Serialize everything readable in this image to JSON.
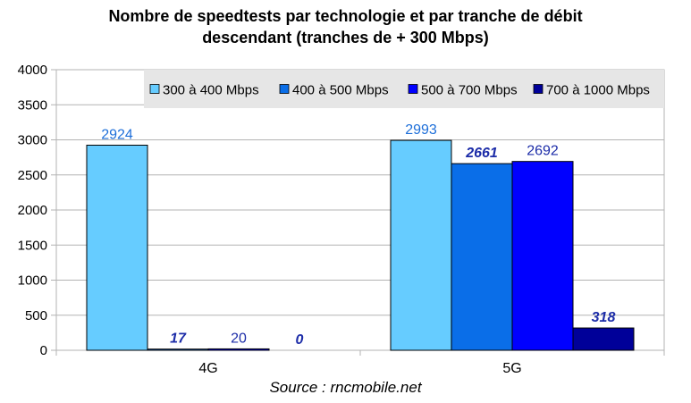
{
  "chart_data": {
    "type": "bar",
    "title_lines": [
      "Nombre de speedtests par technologie et par tranche de débit",
      "descendant (tranches de + 300 Mbps)"
    ],
    "categories": [
      "4G",
      "5G"
    ],
    "series": [
      {
        "name": "300 à 400 Mbps",
        "color": "#66ccff",
        "label_color": "#1e6fd9",
        "label_style": "normal",
        "values": [
          2924,
          2993
        ]
      },
      {
        "name": "400 à 500 Mbps",
        "color": "#0a6ee8",
        "label_color": "#1c2ca8",
        "label_style": "bold-italic",
        "values": [
          17,
          2661
        ]
      },
      {
        "name": "500 à 700 Mbps",
        "color": "#0000ff",
        "label_color": "#1c2ca8",
        "label_style": "normal",
        "values": [
          20,
          2692
        ]
      },
      {
        "name": "700 à 1000 Mbps",
        "color": "#000099",
        "label_color": "#1c2ca8",
        "label_style": "bold-italic",
        "values": [
          0,
          318
        ]
      }
    ],
    "y_ticks": [
      0,
      500,
      1000,
      1500,
      2000,
      2500,
      3000,
      3500,
      4000
    ],
    "ylim": [
      0,
      4000
    ],
    "xlabel": "",
    "ylabel": "",
    "grid": true,
    "legend_position": "top-right",
    "source": "Source : rncmobile.net"
  }
}
